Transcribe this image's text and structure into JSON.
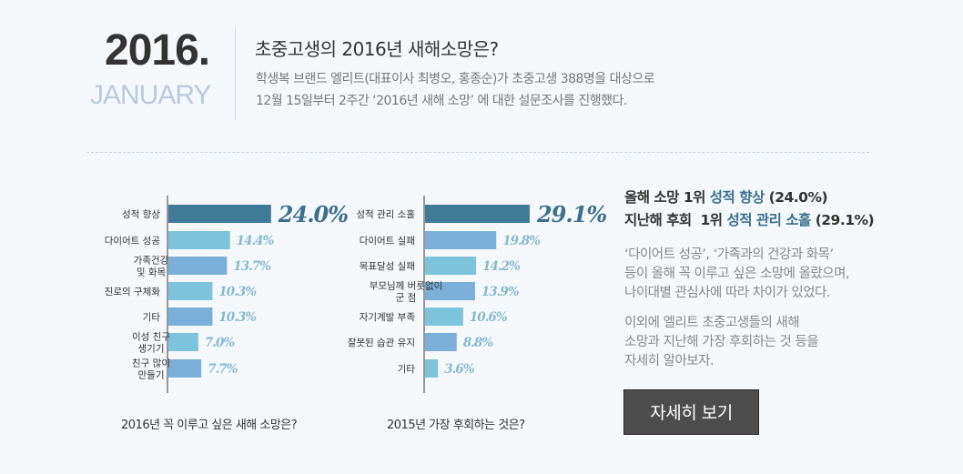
{
  "header": {
    "year": "2016.",
    "month": "JANUARY",
    "headline": "초중고생의 2016년 새해소망은?",
    "desc_line1": "학생복 브랜드 엘리트(대표이사 최병오, 홍종순)가 초중고생 388명을 대상으로",
    "desc_line2": "12월 15일부터 2주간 ‘2016년 새해 소망’ 에 대한 설문조사를 진행했다."
  },
  "chart_data": [
    {
      "type": "bar",
      "orientation": "horizontal",
      "title": "2016년 꼭 이루고 싶은 새해 소망은?",
      "categories": [
        [
          "성적 향상"
        ],
        [
          "다이어트 성공"
        ],
        [
          "가족건강",
          "및 화목"
        ],
        [
          "진로의 구체화"
        ],
        [
          "기타"
        ],
        [
          "이성 친구",
          "생기기"
        ],
        [
          "친구 많이",
          "만들기"
        ]
      ],
      "values": [
        24.0,
        14.4,
        13.7,
        10.3,
        10.3,
        7.0,
        7.7
      ],
      "labels": [
        "24.0%",
        "14.4%",
        "13.7%",
        "10.3%",
        "10.3%",
        "7.0%",
        "7.7%"
      ],
      "colors": [
        "#3f7b97",
        "#7bc4dc",
        "#7aafd9",
        "#7bc4dc",
        "#7aafd9",
        "#7bc4dc",
        "#7aafd9"
      ]
    },
    {
      "type": "bar",
      "orientation": "horizontal",
      "title": "2015년 가장 후회하는 것은?",
      "categories": [
        [
          "성적 관리 소홀"
        ],
        [
          "다이어트 실패"
        ],
        [
          "목표달성 실패"
        ],
        [
          "부모님께 버릇없이",
          "군 점"
        ],
        [
          "자기계발 부족"
        ],
        [
          "잘못된 습관 유지"
        ],
        [
          "기타"
        ]
      ],
      "values": [
        29.1,
        19.8,
        14.2,
        13.9,
        10.6,
        8.8,
        3.6
      ],
      "labels": [
        "29.1%",
        "19.8%",
        "14.2%",
        "13.9%",
        "10.6%",
        "8.8%",
        "3.6%"
      ],
      "colors": [
        "#3f7b97",
        "#7aafd9",
        "#7bc4dc",
        "#7aafd9",
        "#7bc4dc",
        "#7aafd9",
        "#7bc4dc"
      ]
    }
  ],
  "summary": {
    "line1_prefix": "올해 소망 1위 ",
    "line1_highlight": "성적 향상",
    "line1_suffix": " (24.0%)",
    "line2_prefix": "지난해 후회  1위 ",
    "line2_highlight": "성적 관리 소홀",
    "line2_suffix": " (29.1%)",
    "para1_line1": "‘다이어트 성공’, ‘가족과의 건강과 화목’",
    "para1_line2": "등이 올해 꼭 이루고 싶은 소망에 올랐으며,",
    "para1_line3": "나이대별 관심사에 따라 차이가 있었다.",
    "para2_line1": "이외에 엘리트 초중고생들의 새해",
    "para2_line2": "소망과 지난해 가장 후회하는 것 등을",
    "para2_line3": "자세히 알아보자."
  },
  "button": {
    "label": "자세히 보기"
  }
}
